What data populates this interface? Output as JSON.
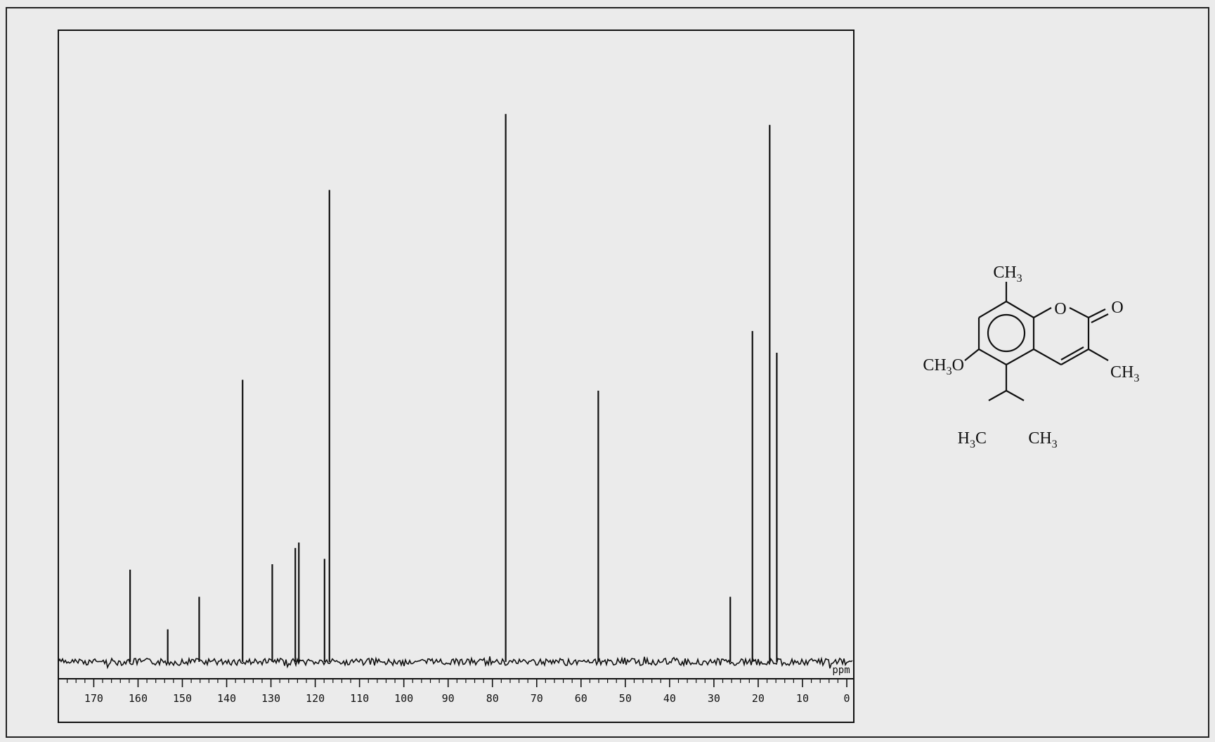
{
  "chart_data": {
    "type": "line",
    "title": "",
    "xlabel": "",
    "ylabel": "",
    "x_unit_label": "ppm",
    "xlim": [
      0,
      178
    ],
    "x_reversed": true,
    "ylim": [
      0,
      100
    ],
    "grid": false,
    "legend": "none",
    "x_ticks": [
      170,
      160,
      150,
      140,
      130,
      120,
      110,
      100,
      90,
      80,
      70,
      60,
      50,
      40,
      30,
      20,
      10,
      0
    ],
    "series": [
      {
        "peaks_ppm": [
          161.8,
          153.3,
          146.2,
          136.4,
          129.7,
          124.5,
          123.7,
          117.9,
          116.8,
          77.0,
          56.1,
          26.3,
          21.3,
          17.4,
          15.8
        ],
        "intensities": [
          17,
          6,
          12,
          52,
          18,
          21,
          22,
          19,
          87,
          101,
          50,
          12,
          61,
          99,
          57
        ]
      }
    ]
  },
  "structure": {
    "labels": {
      "ch3_top": [
        "CH",
        "3",
        ""
      ],
      "ring_o": [
        "O",
        "",
        ""
      ],
      "carbonyl_o": [
        "O",
        "",
        ""
      ],
      "ch3o": [
        "CH",
        "3",
        "O"
      ],
      "ch3_right": [
        "CH",
        "3",
        ""
      ],
      "h3c": [
        "H",
        "3",
        "C"
      ],
      "ch3_bottom": [
        "CH",
        "3",
        ""
      ]
    }
  },
  "colors": {
    "ink": "#111111",
    "paper": "#ebebeb"
  }
}
